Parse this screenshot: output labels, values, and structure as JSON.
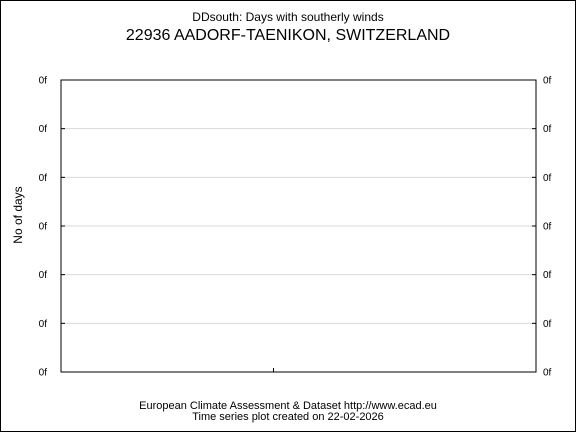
{
  "chart_data": {
    "type": "line",
    "title": "22936 AADORF-TAENIKON, SWITZERLAND",
    "subtitle": "DDsouth: Days with southerly winds",
    "xlabel": "",
    "ylabel": "No of days",
    "y_tick_labels": [
      "0f",
      "0f",
      "0f",
      "0f",
      "0f",
      "0f",
      "0f"
    ],
    "x_tick_labels": [],
    "series": [],
    "grid": true
  },
  "footer": {
    "line1": "European Climate Assessment & Dataset  http://www.ecad.eu",
    "line2": "Time series plot created on 22-02-2026"
  },
  "colors": {
    "grid": "#d9d9d9",
    "axes": "#000000",
    "background": "#ffffff"
  }
}
